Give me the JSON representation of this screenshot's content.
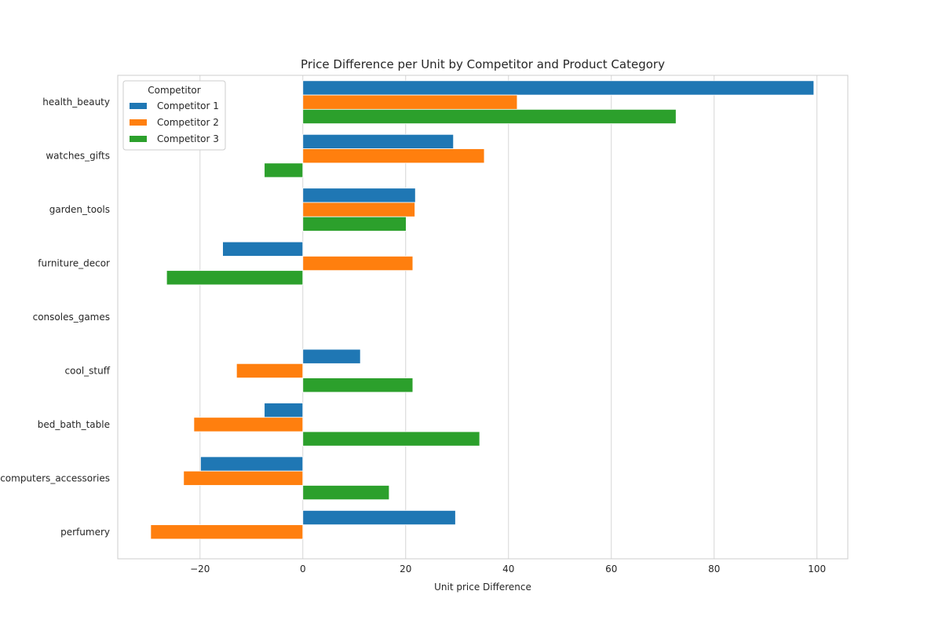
{
  "chart_data": {
    "type": "bar",
    "orientation": "horizontal",
    "title": "Price Difference per Unit by Competitor and Product Category",
    "xlabel": "Unit price Difference",
    "ylabel": "",
    "xlim": [
      -36,
      106
    ],
    "xticks": [
      -20,
      0,
      20,
      40,
      60,
      80,
      100
    ],
    "xtick_labels": [
      "−20",
      "0",
      "20",
      "40",
      "60",
      "80",
      "100"
    ],
    "grid": "vertical",
    "categories": [
      "health_beauty",
      "watches_gifts",
      "garden_tools",
      "furniture_decor",
      "consoles_games",
      "cool_stuff",
      "bed_bath_table",
      "computers_accessories",
      "perfumery"
    ],
    "series": [
      {
        "name": "Competitor 1",
        "color": "#1f77b4",
        "values": [
          99.4,
          29.3,
          21.9,
          -15.6,
          0,
          11.2,
          -7.5,
          -19.9,
          29.7
        ]
      },
      {
        "name": "Competitor 2",
        "color": "#ff7f0e",
        "values": [
          41.7,
          35.3,
          21.8,
          21.4,
          0,
          -12.9,
          -21.2,
          -23.2,
          -29.6
        ]
      },
      {
        "name": "Competitor 3",
        "color": "#2ca02c",
        "values": [
          72.6,
          -7.5,
          20.1,
          -26.5,
          0,
          21.4,
          34.4,
          16.8,
          null
        ]
      }
    ],
    "legend": {
      "title": "Competitor",
      "position": "upper-left"
    }
  }
}
